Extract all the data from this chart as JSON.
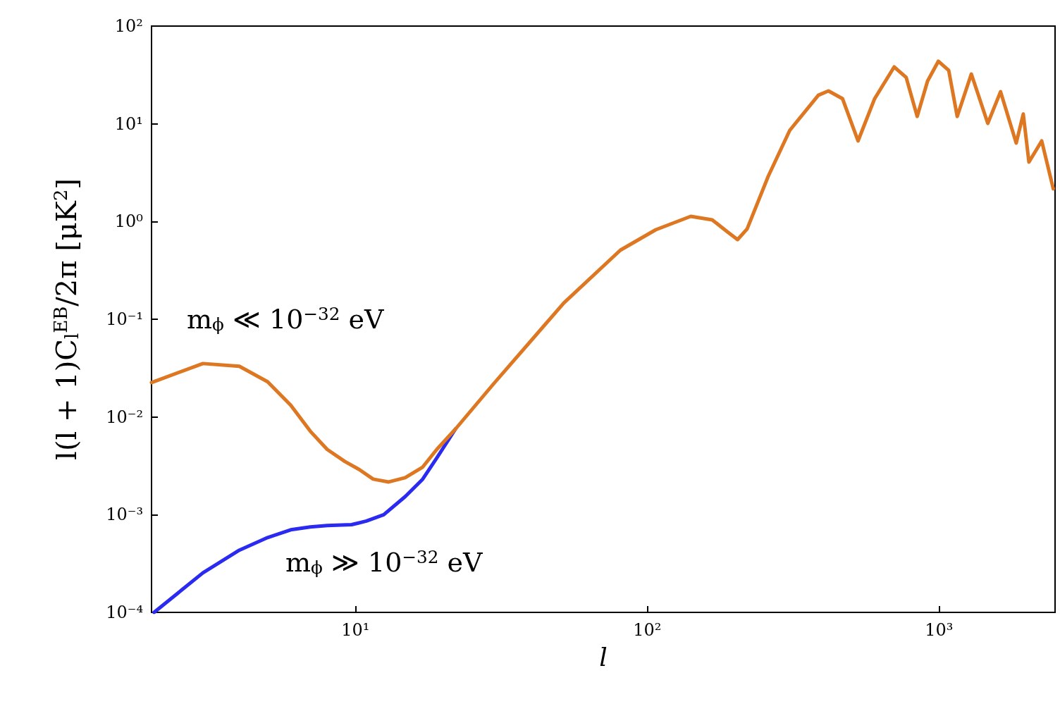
{
  "chart_data": {
    "type": "line",
    "xlabel": "l",
    "ylabel": "l(l + 1)C$_{l}$$^{EB}$/2π [μK$^{2}$]",
    "log": "xy",
    "grid": false,
    "legend": false,
    "marker": "none",
    "line_style": "solid",
    "xlim": [
      2,
      2500
    ],
    "ylim": [
      0.0001,
      100
    ],
    "xticks": [
      {
        "value": 10,
        "label": "10¹"
      },
      {
        "value": 100,
        "label": "10²"
      },
      {
        "value": 1000,
        "label": "10³"
      }
    ],
    "yticks": [
      {
        "value": 0.0001,
        "label": "10⁻⁴"
      },
      {
        "value": 0.001,
        "label": "10⁻³"
      },
      {
        "value": 0.01,
        "label": "10⁻²"
      },
      {
        "value": 0.1,
        "label": "10⁻¹"
      },
      {
        "value": 1,
        "label": "10⁰"
      },
      {
        "value": 10,
        "label": "10¹"
      },
      {
        "value": 100,
        "label": "10²"
      }
    ],
    "series": [
      {
        "name": "m$_{ϕ}$ ≫ 10$^{−32}$ eV",
        "color": "#2a2af0",
        "x": [
          2.04,
          3,
          4,
          5,
          6,
          7,
          8,
          9.7,
          10.9,
          12.5,
          14.8,
          17,
          19,
          22
        ],
        "values": [
          0.0001,
          0.000254,
          0.000433,
          0.000583,
          0.0007,
          0.00075,
          0.000773,
          0.00079,
          0.00086,
          0.001,
          0.00153,
          0.00231,
          0.0038,
          0.0075
        ]
      },
      {
        "name": "m$_{ϕ}$ ≪ 10$^{−32}$ eV",
        "color": "#dd7722",
        "x": [
          2,
          3,
          4,
          5,
          6,
          7,
          8,
          9.2,
          10.3,
          11.5,
          13,
          14.8,
          17,
          19,
          22,
          29.7,
          51.8,
          80.9,
          107,
          141,
          167,
          187,
          204,
          220,
          260,
          308,
          386,
          418,
          467,
          528,
          602,
          702,
          772,
          842,
          914,
          995,
          1080,
          1155,
          1291,
          1470,
          1626,
          1840,
          1945,
          2034,
          2250,
          2465
        ],
        "values": [
          0.0225,
          0.0352,
          0.033,
          0.0229,
          0.0132,
          0.00715,
          0.00465,
          0.0035,
          0.0029,
          0.00231,
          0.00216,
          0.00239,
          0.00307,
          0.00465,
          0.0075,
          0.0217,
          0.147,
          0.509,
          0.824,
          1.13,
          1.04,
          0.798,
          0.653,
          0.839,
          2.91,
          8.57,
          19.6,
          21.7,
          18.1,
          6.68,
          18.1,
          38.2,
          29.8,
          11.9,
          27.4,
          43.6,
          35.2,
          11.9,
          32.3,
          10.1,
          21.3,
          6.35,
          12.6,
          4.06,
          6.68,
          2.16
        ]
      }
    ]
  }
}
